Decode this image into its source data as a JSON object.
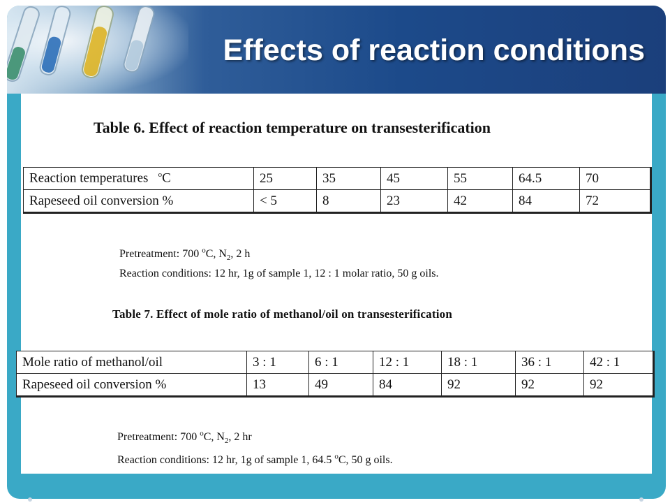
{
  "slide": {
    "title": "Effects of reaction conditions",
    "colors": {
      "header": "#1c4a8a",
      "frame": "#3aa9c6",
      "title_text": "#ffffff"
    },
    "icons": [
      "test-tubes-image"
    ]
  },
  "table6": {
    "caption": "Table 6. Effect of reaction temperature on transesterification",
    "row1": {
      "label": "Reaction temperatures",
      "unit_sup": "o",
      "unit": "C",
      "values": [
        "25",
        "35",
        "45",
        "55",
        "64.5",
        "70"
      ]
    },
    "row2": {
      "label": "Rapeseed oil conversion  %",
      "values": [
        "< 5",
        "8",
        "23",
        "42",
        "84",
        "72"
      ]
    },
    "note": {
      "pre1": "Pretreatment:  700 ",
      "pre_sup": "o",
      "pre2": "C, N",
      "pre_sub": "2",
      "pre3": ", 2 h",
      "conditions": "Reaction conditions: 12 hr, 1g of sample 1, 12 : 1 molar ratio, 50 g oils."
    }
  },
  "table7": {
    "caption": "Table 7. Effect of mole ratio of methanol/oil on transesterification",
    "row1": {
      "label": "Mole ratio of methanol/oil",
      "values": [
        "3 : 1",
        "6 : 1",
        "12 : 1",
        "18 : 1",
        "36 : 1",
        "42 : 1"
      ]
    },
    "row2": {
      "label": "Rapeseed oil conversion  %",
      "values": [
        "13",
        "49",
        "84",
        "92",
        "92",
        "92"
      ]
    },
    "note": {
      "pre1": "Pretreatment:  700 ",
      "pre_sup": "o",
      "pre2": "C, N",
      "pre_sub": "2",
      "pre3": ", 2 hr",
      "cond1": "Reaction conditions: 12 hr, 1g of sample 1, 64.5 ",
      "cond_sup": "o",
      "cond2": "C, 50 g oils."
    }
  }
}
